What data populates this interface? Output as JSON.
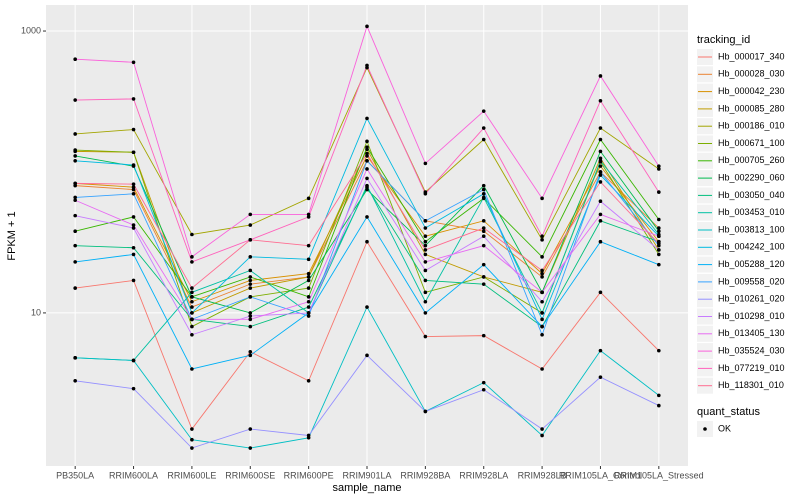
{
  "chart_data": {
    "type": "line",
    "x_label": "sample_name",
    "y_label": "FPKM + 1",
    "log_scale": true,
    "grid": true,
    "categories": [
      "PB350LA",
      "RRIM600LA",
      "RRIM600LE",
      "RRIM600SE",
      "RRIM600PE",
      "RRIM901LA",
      "RRIM928BA",
      "RRIM928LA",
      "RRIM928LB",
      "RRIM105LA_Control",
      "RRIM105LA_Stressed"
    ],
    "ylim": [
      0.82,
      1530
    ],
    "yticks": [
      10,
      1000
    ],
    "legend_title": "tracking_id",
    "legend_position": "right",
    "point_legend": {
      "title": "quant_status",
      "labels": [
        "OK"
      ],
      "color": "#000000"
    },
    "series": [
      {
        "name": "Hb_000017_340",
        "color": "#F8766D",
        "values": [
          15,
          17,
          1.5,
          5.3,
          3.3,
          32,
          6.8,
          6.9,
          4,
          14,
          5.4
        ]
      },
      {
        "name": "Hb_000028_030",
        "color": "#EA8331",
        "values": [
          80,
          75,
          11,
          16,
          18,
          120,
          45,
          38,
          18,
          100,
          40
        ]
      },
      {
        "name": "Hb_000042_230",
        "color": "#D89000",
        "values": [
          83,
          78,
          12,
          17,
          19,
          130,
          35,
          45,
          19,
          110,
          32
        ]
      },
      {
        "name": "Hb_000085_280",
        "color": "#C09B00",
        "values": [
          140,
          138,
          10,
          15,
          18,
          145,
          26,
          18,
          14,
          125,
          28
        ]
      },
      {
        "name": "Hb_000186_010",
        "color": "#A3A500",
        "values": [
          186,
          200,
          36,
          42,
          65,
          550,
          72,
          170,
          33,
          205,
          105
        ]
      },
      {
        "name": "Hb_000671_100",
        "color": "#7CAE00",
        "values": [
          143,
          138,
          8,
          13,
          15,
          165,
          14,
          18,
          10,
          118,
          26
        ]
      },
      {
        "name": "Hb_000705_260",
        "color": "#39B600",
        "values": [
          38,
          48,
          13,
          18,
          13,
          150,
          32,
          65,
          25,
          170,
          46
        ]
      },
      {
        "name": "Hb_002290_060",
        "color": "#00BB4E",
        "values": [
          130,
          110,
          13,
          10,
          17,
          75,
          30,
          80,
          14,
          140,
          38
        ]
      },
      {
        "name": "Hb_003050_040",
        "color": "#00BF7D",
        "values": [
          30,
          29,
          9,
          8,
          11,
          78,
          17,
          16,
          8,
          45,
          32
        ]
      },
      {
        "name": "Hb_003453_010",
        "color": "#00C1A3",
        "values": [
          4.8,
          4.6,
          14,
          20,
          10,
          80,
          12,
          66,
          10,
          120,
          36
        ]
      },
      {
        "name": "Hb_003813_100",
        "color": "#00BFC4",
        "values": [
          4.8,
          4.6,
          1.26,
          1.1,
          1.3,
          11,
          2,
          3.2,
          1.35,
          5.4,
          2.6
        ]
      },
      {
        "name": "Hb_004242_100",
        "color": "#00BAE0",
        "values": [
          120,
          112,
          10,
          25,
          24,
          240,
          40,
          70,
          9,
          95,
          35
        ]
      },
      {
        "name": "Hb_005288_120",
        "color": "#00B0F6",
        "values": [
          23,
          26,
          4,
          5,
          10,
          48,
          10,
          22,
          8,
          32,
          22
        ]
      },
      {
        "name": "Hb_009558_020",
        "color": "#35A2FF",
        "values": [
          66,
          70,
          9,
          13,
          9.5,
          120,
          45,
          75,
          7,
          100,
          30
        ]
      },
      {
        "name": "Hb_010261_020",
        "color": "#9590FF",
        "values": [
          3.3,
          2.9,
          1.1,
          1.5,
          1.35,
          5,
          2,
          2.85,
          1.5,
          3.5,
          2.2
        ]
      },
      {
        "name": "Hb_010298_010",
        "color": "#C77CFF",
        "values": [
          49,
          40,
          7,
          9.5,
          10,
          90,
          20,
          35,
          12,
          62,
          28
        ]
      },
      {
        "name": "Hb_013405_130",
        "color": "#E76BF3",
        "values": [
          63,
          42,
          9,
          9,
          12,
          105,
          23,
          30,
          14,
          50,
          35
        ]
      },
      {
        "name": "Hb_035524_030",
        "color": "#FA62DB",
        "values": [
          631,
          600,
          25,
          50,
          50,
          1080,
          115,
          270,
          65,
          480,
          110
        ]
      },
      {
        "name": "Hb_077219_010",
        "color": "#FF62BC",
        "values": [
          324,
          330,
          23,
          33,
          48,
          570,
          70,
          205,
          35,
          320,
          72
        ]
      },
      {
        "name": "Hb_118301_010",
        "color": "#FF6C91",
        "values": [
          83,
          82,
          15,
          33,
          30,
          135,
          28,
          40,
          20,
          85,
          31
        ]
      }
    ]
  }
}
